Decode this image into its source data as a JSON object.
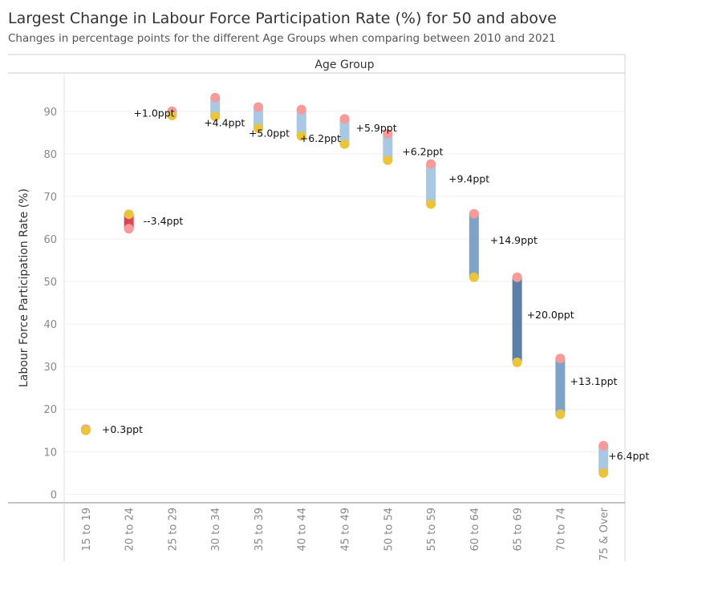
{
  "header": {
    "title": "Largest Change in Labour Force Participation Rate (%) for 50 and above",
    "subtitle": "Changes in percentage points for the different Age Groups when comparing between 2010 and 2021"
  },
  "colors": {
    "y2010": "#ebc43e",
    "y2021": "#f79a9a",
    "bar_small": "#a8c8e4",
    "bar_mid": "#7ea3c7",
    "bar_large": "#5b7fa6",
    "bar_negative": "#d9465a"
  },
  "chart_data": {
    "type": "dumbbell",
    "column_header": "Age Group",
    "ylabel": "Labour Force Participation Rate (%)",
    "ylim": [
      -2,
      99
    ],
    "yticks": [
      "0",
      "10",
      "20",
      "30",
      "40",
      "50",
      "60",
      "70",
      "80",
      "90"
    ],
    "grid": true,
    "categories": [
      "15 to 19",
      "20 to 24",
      "25 to 29",
      "30 to 34",
      "35 to 39",
      "40 to 44",
      "45 to 49",
      "50 to 54",
      "55 to 59",
      "60 to 64",
      "65 to 69",
      "70 to 74",
      "75 & Over"
    ],
    "series": [
      {
        "values": [
          15.0,
          65.8,
          89.0,
          88.8,
          86.0,
          84.2,
          82.3,
          78.5,
          68.2,
          51.0,
          31.0,
          18.8,
          5.0
        ]
      },
      {
        "values": [
          15.3,
          62.4,
          90.0,
          93.2,
          91.0,
          90.4,
          88.2,
          84.7,
          77.6,
          65.9,
          51.0,
          31.9,
          11.4
        ]
      }
    ],
    "labels": [
      "+0.3ppt",
      "--3.4ppt",
      "+1.0ppt",
      "+4.4ppt",
      "+5.0ppt",
      "+6.2ppt",
      "+5.9ppt",
      "+6.2ppt",
      "+9.4ppt",
      "+14.9ppt",
      "+20.0ppt",
      "+13.1ppt",
      "+6.4ppt"
    ]
  }
}
